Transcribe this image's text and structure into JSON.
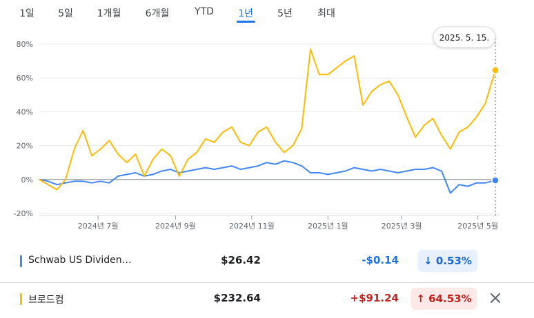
{
  "tabs": {
    "items": [
      "1일",
      "5일",
      "1개월",
      "6개월",
      "YTD",
      "1년",
      "5년",
      "최대"
    ],
    "active": "1년"
  },
  "colors": {
    "accent": "#1a73e8",
    "schwab": "#4285f4",
    "broadcom": "#fbbc04",
    "positive_bg": "#fce8e6",
    "negative_bg": "#e8f0fe"
  },
  "chart_data": {
    "type": "line",
    "tooltip_date": "2025. 5. 15.",
    "ylim": [
      -20,
      80
    ],
    "y_ticks": [
      "80%",
      "60%",
      "40%",
      "20%",
      "0%",
      "-20%"
    ],
    "y_tick_values": [
      80,
      60,
      40,
      20,
      0,
      -20
    ],
    "x_labels": [
      "2024년 7월",
      "2024년 9월",
      "2024년 11월",
      "2025년 1월",
      "2025년 3월",
      "2025년 5월"
    ],
    "x_label_dates": [
      "2024-07-01",
      "2024-09-01",
      "2024-11-01",
      "2025-01-01",
      "2025-03-01",
      "2025-05-01"
    ],
    "x_range": [
      "2024-05-15",
      "2025-05-15"
    ],
    "grid": "horizontal",
    "series": [
      {
        "name": "Schwab US Dividen…",
        "color": "#4285f4",
        "points": [
          [
            "2024-05-15",
            0
          ],
          [
            "2024-05-22",
            -1
          ],
          [
            "2024-05-29",
            -3
          ],
          [
            "2024-06-05",
            -2
          ],
          [
            "2024-06-12",
            -1
          ],
          [
            "2024-06-19",
            -1
          ],
          [
            "2024-06-26",
            -2
          ],
          [
            "2024-07-03",
            -1
          ],
          [
            "2024-07-10",
            -2
          ],
          [
            "2024-07-17",
            2
          ],
          [
            "2024-07-24",
            3
          ],
          [
            "2024-07-31",
            4
          ],
          [
            "2024-08-07",
            2
          ],
          [
            "2024-08-14",
            3
          ],
          [
            "2024-08-21",
            5
          ],
          [
            "2024-08-28",
            6
          ],
          [
            "2024-09-04",
            4
          ],
          [
            "2024-09-11",
            5
          ],
          [
            "2024-09-18",
            6
          ],
          [
            "2024-09-25",
            7
          ],
          [
            "2024-10-02",
            6
          ],
          [
            "2024-10-09",
            7
          ],
          [
            "2024-10-16",
            8
          ],
          [
            "2024-10-23",
            6
          ],
          [
            "2024-10-30",
            7
          ],
          [
            "2024-11-06",
            8
          ],
          [
            "2024-11-13",
            10
          ],
          [
            "2024-11-20",
            9
          ],
          [
            "2024-11-27",
            11
          ],
          [
            "2024-12-04",
            10
          ],
          [
            "2024-12-11",
            8
          ],
          [
            "2024-12-18",
            4
          ],
          [
            "2024-12-25",
            4
          ],
          [
            "2025-01-01",
            3
          ],
          [
            "2025-01-08",
            4
          ],
          [
            "2025-01-15",
            5
          ],
          [
            "2025-01-22",
            7
          ],
          [
            "2025-01-29",
            6
          ],
          [
            "2025-02-05",
            5
          ],
          [
            "2025-02-12",
            6
          ],
          [
            "2025-02-19",
            5
          ],
          [
            "2025-02-26",
            4
          ],
          [
            "2025-03-05",
            5
          ],
          [
            "2025-03-12",
            6
          ],
          [
            "2025-03-19",
            6
          ],
          [
            "2025-03-26",
            7
          ],
          [
            "2025-04-02",
            5
          ],
          [
            "2025-04-09",
            -8
          ],
          [
            "2025-04-16",
            -3
          ],
          [
            "2025-04-23",
            -4
          ],
          [
            "2025-04-30",
            -2
          ],
          [
            "2025-05-07",
            -2
          ],
          [
            "2025-05-15",
            -0.53
          ]
        ]
      },
      {
        "name": "브로드컴",
        "color": "#fbbc04",
        "points": [
          [
            "2024-05-15",
            0
          ],
          [
            "2024-05-22",
            -3
          ],
          [
            "2024-05-29",
            -6
          ],
          [
            "2024-06-05",
            0
          ],
          [
            "2024-06-12",
            18
          ],
          [
            "2024-06-19",
            29
          ],
          [
            "2024-06-26",
            14
          ],
          [
            "2024-07-03",
            18
          ],
          [
            "2024-07-10",
            23
          ],
          [
            "2024-07-17",
            15
          ],
          [
            "2024-07-24",
            10
          ],
          [
            "2024-07-31",
            15
          ],
          [
            "2024-08-07",
            2
          ],
          [
            "2024-08-14",
            12
          ],
          [
            "2024-08-21",
            18
          ],
          [
            "2024-08-28",
            14
          ],
          [
            "2024-09-04",
            2
          ],
          [
            "2024-09-11",
            12
          ],
          [
            "2024-09-18",
            16
          ],
          [
            "2024-09-25",
            24
          ],
          [
            "2024-10-02",
            22
          ],
          [
            "2024-10-09",
            28
          ],
          [
            "2024-10-16",
            31
          ],
          [
            "2024-10-23",
            22
          ],
          [
            "2024-10-30",
            20
          ],
          [
            "2024-11-06",
            28
          ],
          [
            "2024-11-13",
            31
          ],
          [
            "2024-11-20",
            22
          ],
          [
            "2024-11-27",
            16
          ],
          [
            "2024-12-04",
            20
          ],
          [
            "2024-12-11",
            30
          ],
          [
            "2024-12-18",
            77
          ],
          [
            "2024-12-25",
            62
          ],
          [
            "2025-01-01",
            62
          ],
          [
            "2025-01-08",
            66
          ],
          [
            "2025-01-15",
            70
          ],
          [
            "2025-01-22",
            73
          ],
          [
            "2025-01-29",
            44
          ],
          [
            "2025-02-05",
            52
          ],
          [
            "2025-02-12",
            56
          ],
          [
            "2025-02-19",
            58
          ],
          [
            "2025-02-26",
            50
          ],
          [
            "2025-03-05",
            37
          ],
          [
            "2025-03-12",
            25
          ],
          [
            "2025-03-19",
            32
          ],
          [
            "2025-03-26",
            36
          ],
          [
            "2025-04-02",
            26
          ],
          [
            "2025-04-09",
            18
          ],
          [
            "2025-04-16",
            28
          ],
          [
            "2025-04-23",
            31
          ],
          [
            "2025-04-30",
            37
          ],
          [
            "2025-05-07",
            45
          ],
          [
            "2025-05-15",
            64.53
          ]
        ]
      }
    ]
  },
  "holdings": [
    {
      "name": "Schwab US Dividen…",
      "color": "#4285f4",
      "price": "$26.42",
      "change": "-$0.14",
      "percent": "0.53%",
      "arrow": "↓",
      "direction": "down"
    },
    {
      "name": "브로드컴",
      "color": "#fbbc04",
      "price": "$232.64",
      "change": "+$91.24",
      "percent": "64.53%",
      "arrow": "↑",
      "direction": "up"
    }
  ]
}
